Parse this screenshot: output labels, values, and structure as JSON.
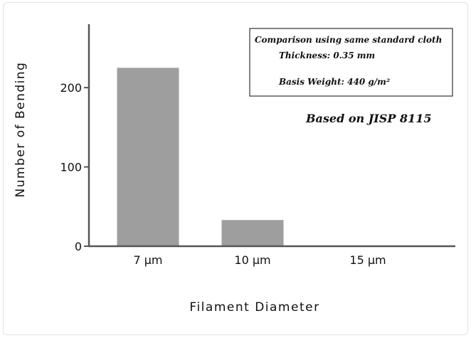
{
  "chart_data": {
    "type": "bar",
    "categories": [
      "7 μm",
      "10 μm",
      "15 μm"
    ],
    "values": [
      225,
      33,
      0
    ],
    "xlabel": "Filament Diameter",
    "ylabel": "Number of Bending",
    "ylim": [
      0,
      280
    ],
    "yticks": [
      0,
      100,
      200
    ],
    "grid": false,
    "legend": "none",
    "bar_color": "#9e9e9e",
    "annotation_box": {
      "title": "Comparison using same standard cloth",
      "line1": "Thickness: 0.35 mm",
      "line2": "Basis Weight: 440 g/m²"
    },
    "annotation": "Based on JISP 8115"
  }
}
